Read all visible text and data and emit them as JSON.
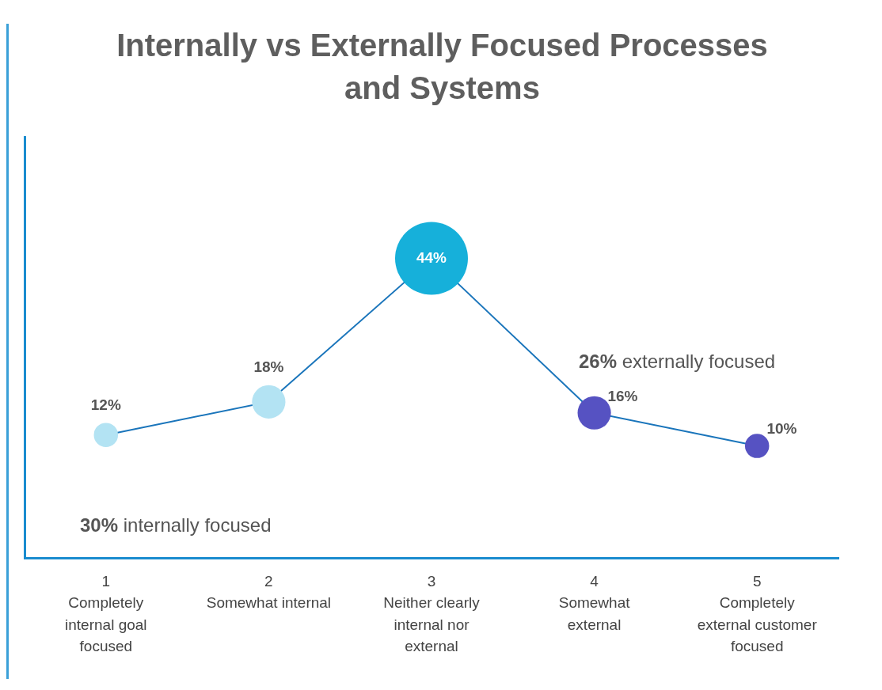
{
  "chart_data": {
    "type": "bubble",
    "title": "Internally vs Externally Focused Processes and Systems",
    "categories": [
      "1\nCompletely internal goal focused",
      "2\nSomewhat internal",
      "3\nNeither clearly internal nor external",
      "4\nSomewhat external",
      "5\nCompletely external customer focused"
    ],
    "series": [
      {
        "color": "#1a75bb",
        "colors": [
          "#b3e3f3",
          "#b3e3f3",
          "#16b0da",
          "#5652c2",
          "#5652c2"
        ],
        "values": [
          12,
          18,
          44,
          16,
          10
        ],
        "sizes": [
          0.11,
          0.21,
          1,
          0.21,
          0.11
        ],
        "line_style": "solid",
        "value_labels": [
          "12%",
          "18%",
          "44%",
          "16%",
          "10%"
        ]
      }
    ],
    "marker": "circle",
    "tick_labels": "x",
    "grid": false,
    "legend": false,
    "annotations": [
      "30% internally focused",
      "26% externally focused"
    ]
  }
}
